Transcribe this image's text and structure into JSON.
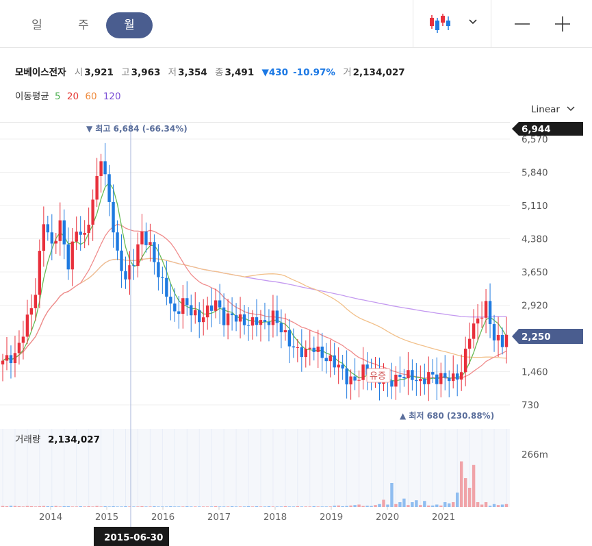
{
  "toolbar": {
    "periods": [
      {
        "label": "일",
        "active": false
      },
      {
        "label": "주",
        "active": false
      },
      {
        "label": "월",
        "active": true
      }
    ]
  },
  "stock": {
    "name": "모베이스전자",
    "open_label": "시",
    "open": "3,921",
    "high_label": "고",
    "high": "3,963",
    "low_label": "저",
    "low": "3,354",
    "close_label": "종",
    "close": "3,491",
    "change": "▼430",
    "change_pct": "-10.97%",
    "volume_label": "거",
    "volume": "2,134,027"
  },
  "moving_average": {
    "label": "이동평균",
    "periods": [
      {
        "label": "5",
        "color": "#4caf50"
      },
      {
        "label": "20",
        "color": "#e53935"
      },
      {
        "label": "60",
        "color": "#ef8a3c"
      },
      {
        "label": "120",
        "color": "#7b4fd6"
      }
    ]
  },
  "scale_mode": "Linear",
  "colors": {
    "up": "#e8303c",
    "down": "#1f7ae0",
    "ma5": "#66bb55",
    "ma20": "#f08c8c",
    "ma60": "#f2c08a",
    "ma120": "#c49af0",
    "price_tag": "#4a5d8f"
  },
  "chart_data": {
    "type": "candlestick",
    "interval": "monthly",
    "y_ticks": [
      "6,570",
      "5,840",
      "5,110",
      "4,380",
      "3,650",
      "2,920",
      "2,250",
      "1,460",
      "730"
    ],
    "y_range": [
      300,
      7000
    ],
    "x_ticks": [
      "2014",
      "2015",
      "2016",
      "2017",
      "2018",
      "2019",
      "2020",
      "2021"
    ],
    "max_label": "▼ 최고 6,684 (-66.34%)",
    "min_label": "▲ 최저 680 (230.88%)",
    "max_value": 6684,
    "min_value": 680,
    "current_price_tag": "2,250",
    "top_price_tag": "6,944",
    "event_marker": "유증",
    "crosshair_date": "2015-06-30",
    "volume_label": "거래량",
    "volume_value": "2,134,027",
    "volume_tick": "266m",
    "volume_max": 300,
    "volume_series": [
      4,
      3,
      5,
      4,
      3,
      2,
      4,
      3,
      2,
      3,
      4,
      3,
      3,
      4,
      2,
      3,
      3,
      2,
      2,
      3,
      2,
      3,
      2,
      4,
      2,
      3,
      2,
      3,
      2,
      2,
      3,
      2,
      2,
      2,
      3,
      2,
      2,
      3,
      2,
      2,
      2,
      3,
      2,
      2,
      2,
      3,
      2,
      2,
      2,
      2,
      2,
      2,
      3,
      2,
      2,
      2,
      3,
      2,
      2,
      2,
      3,
      2,
      3,
      2,
      2,
      3,
      2,
      2,
      2,
      3,
      2,
      2,
      3,
      2,
      2,
      2,
      3,
      2,
      2,
      2,
      2,
      5,
      6,
      3,
      4,
      6,
      8,
      10,
      4,
      5,
      4,
      8,
      12,
      30,
      10,
      100,
      12,
      20,
      35,
      8,
      20,
      28,
      8,
      25,
      6,
      6,
      10,
      6,
      20,
      15,
      20,
      60,
      190,
      120,
      80,
      175,
      20,
      10,
      20,
      5,
      12,
      8,
      10,
      12
    ]
  }
}
